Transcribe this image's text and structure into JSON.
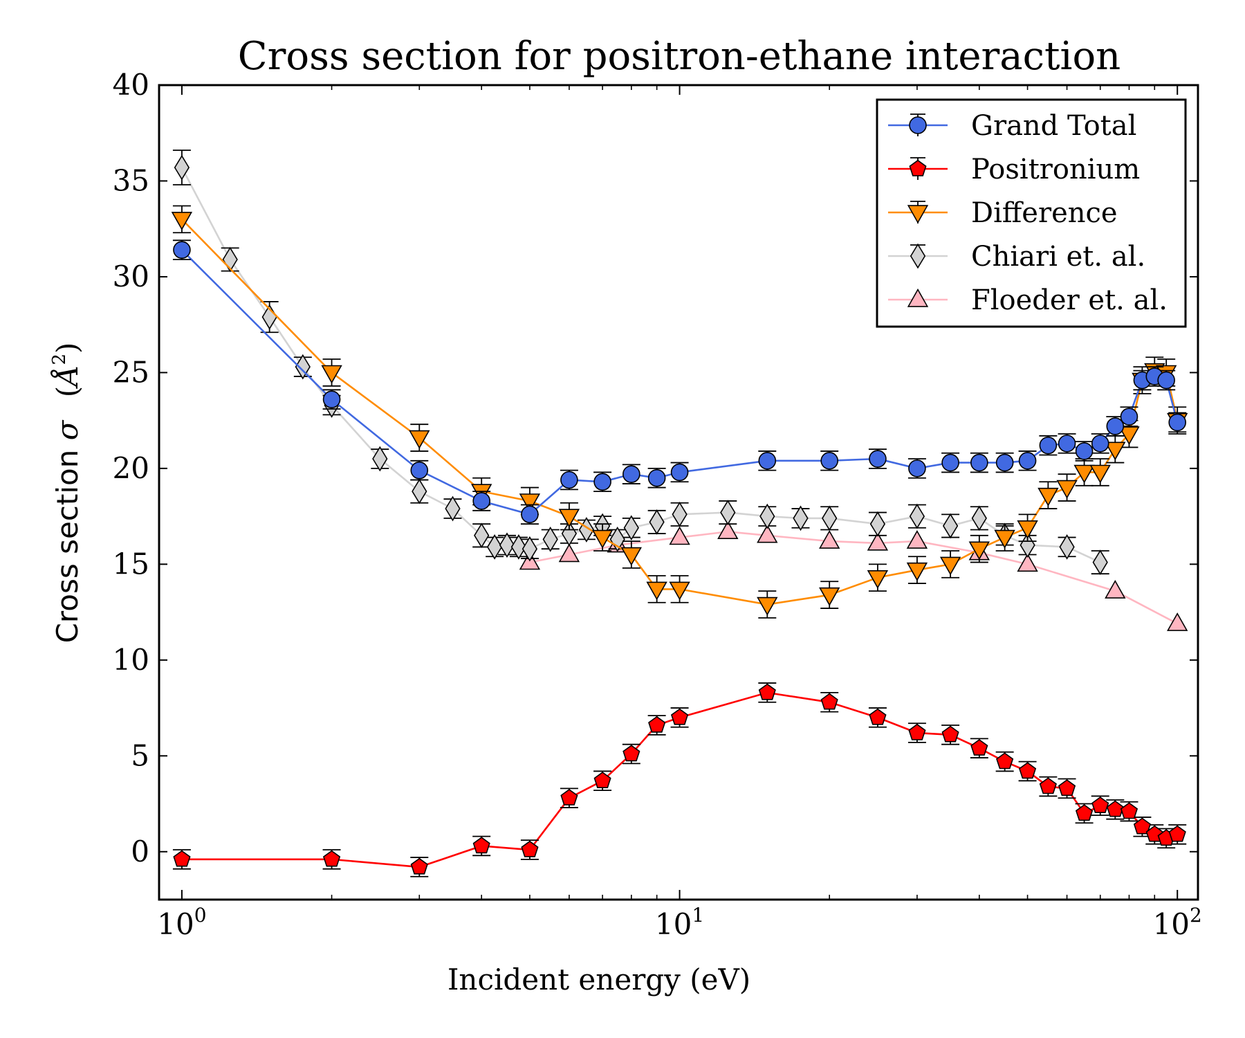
{
  "chart_data": {
    "type": "line",
    "title": "Cross section for positron-ethane interaction",
    "xlabel": "Incident energy (eV)",
    "ylabel_text": "Cross section",
    "ylabel_symbol": "σ",
    "ylabel_unit_base": "Å",
    "ylabel_unit_exp": "2",
    "x_scale": "log",
    "xlim": [
      0.9,
      110
    ],
    "ylim": [
      -2.5,
      40
    ],
    "grid": false,
    "legend_position": "top-right",
    "x_ticks": [
      {
        "value": 1,
        "base": "10",
        "exp": "0"
      },
      {
        "value": 10,
        "base": "10",
        "exp": "1"
      },
      {
        "value": 100,
        "base": "10",
        "exp": "2"
      }
    ],
    "y_ticks": [
      {
        "value": 0,
        "label": "0"
      },
      {
        "value": 5,
        "label": "5"
      },
      {
        "value": 10,
        "label": "10"
      },
      {
        "value": 15,
        "label": "15"
      },
      {
        "value": 20,
        "label": "20"
      },
      {
        "value": 25,
        "label": "25"
      },
      {
        "value": 30,
        "label": "30"
      },
      {
        "value": 35,
        "label": "35"
      },
      {
        "value": 40,
        "label": "40"
      }
    ],
    "series": [
      {
        "name": "Grand Total",
        "marker": "circle",
        "color": "#4169e1",
        "line_color": "#4169e1",
        "x": [
          1,
          2,
          3,
          4,
          5,
          6,
          7,
          8,
          9,
          10,
          15,
          20,
          25,
          30,
          35,
          40,
          45,
          50,
          55,
          60,
          65,
          70,
          75,
          80,
          85,
          90,
          95,
          100
        ],
        "y": [
          31.4,
          23.6,
          19.9,
          18.3,
          17.6,
          19.4,
          19.3,
          19.7,
          19.5,
          19.8,
          20.4,
          20.4,
          20.5,
          20.0,
          20.3,
          20.3,
          20.3,
          20.4,
          21.2,
          21.3,
          20.9,
          21.3,
          22.2,
          22.7,
          24.6,
          24.8,
          24.6,
          22.4
        ],
        "err": [
          0.5,
          0.5,
          0.5,
          0.5,
          0.5,
          0.5,
          0.5,
          0.5,
          0.5,
          0.5,
          0.5,
          0.5,
          0.5,
          0.5,
          0.5,
          0.5,
          0.5,
          0.5,
          0.5,
          0.5,
          0.5,
          0.5,
          0.5,
          0.5,
          0.5,
          0.5,
          0.5,
          0.5
        ]
      },
      {
        "name": "Positronium",
        "marker": "pentagon",
        "color": "#ff0000",
        "line_color": "#ff0000",
        "x": [
          1,
          2,
          3,
          4,
          5,
          6,
          7,
          8,
          9,
          10,
          15,
          20,
          25,
          30,
          35,
          40,
          45,
          50,
          55,
          60,
          65,
          70,
          75,
          80,
          85,
          90,
          95,
          100
        ],
        "y": [
          -0.4,
          -0.4,
          -0.8,
          0.3,
          0.1,
          2.8,
          3.7,
          5.1,
          6.6,
          7.0,
          8.3,
          7.8,
          7.0,
          6.2,
          6.1,
          5.4,
          4.7,
          4.2,
          3.4,
          3.3,
          2.0,
          2.4,
          2.2,
          2.1,
          1.3,
          0.9,
          0.7,
          0.9
        ],
        "err": [
          0.5,
          0.5,
          0.5,
          0.5,
          0.5,
          0.5,
          0.5,
          0.5,
          0.5,
          0.5,
          0.5,
          0.5,
          0.5,
          0.5,
          0.5,
          0.5,
          0.5,
          0.5,
          0.5,
          0.5,
          0.5,
          0.5,
          0.5,
          0.5,
          0.5,
          0.5,
          0.5,
          0.5
        ]
      },
      {
        "name": "Difference",
        "marker": "triangle-down",
        "color": "#ff8c00",
        "line_color": "#ff8c00",
        "x": [
          1,
          2,
          3,
          4,
          5,
          6,
          7,
          8,
          9,
          10,
          15,
          20,
          25,
          30,
          35,
          40,
          45,
          50,
          55,
          60,
          65,
          70,
          75,
          80,
          85,
          90,
          95,
          100
        ],
        "y": [
          33.0,
          25.0,
          21.6,
          18.8,
          18.3,
          17.5,
          16.4,
          15.5,
          13.7,
          13.7,
          12.9,
          13.4,
          14.3,
          14.7,
          15.0,
          15.8,
          16.4,
          16.9,
          18.6,
          19.0,
          19.8,
          19.8,
          21.0,
          21.8,
          24.6,
          25.1,
          25.0,
          22.5
        ],
        "err": [
          0.7,
          0.7,
          0.7,
          0.7,
          0.7,
          0.7,
          0.7,
          0.7,
          0.7,
          0.7,
          0.7,
          0.7,
          0.7,
          0.7,
          0.7,
          0.7,
          0.7,
          0.7,
          0.7,
          0.7,
          0.7,
          0.7,
          0.7,
          0.7,
          0.7,
          0.7,
          0.7,
          0.7
        ]
      },
      {
        "name": "Chiari et. al.",
        "marker": "thin-diamond",
        "color": "#d3d3d3",
        "line_color": "#d3d3d3",
        "x": [
          1.0,
          1.25,
          1.5,
          1.75,
          2.0,
          2.5,
          3.0,
          3.5,
          4.0,
          4.25,
          4.5,
          4.75,
          5.0,
          5.5,
          6.0,
          6.5,
          7.0,
          7.5,
          8.0,
          9.0,
          10.0,
          12.5,
          15.0,
          17.5,
          20.0,
          25.0,
          30.0,
          35.0,
          40.0,
          45.0,
          50.0,
          60.0,
          70.0
        ],
        "y": [
          35.7,
          30.9,
          27.9,
          25.3,
          23.3,
          20.5,
          18.8,
          17.9,
          16.5,
          15.9,
          16.0,
          15.9,
          15.8,
          16.3,
          16.6,
          16.8,
          17.0,
          16.3,
          16.9,
          17.2,
          17.6,
          17.7,
          17.5,
          17.4,
          17.4,
          17.1,
          17.5,
          17.0,
          17.4,
          16.5,
          16.0,
          15.9,
          15.1
        ],
        "err": [
          0.9,
          0.6,
          0.8,
          0.5,
          0.5,
          0.5,
          0.6,
          0.5,
          0.6,
          0.5,
          0.5,
          0.5,
          0.5,
          0.5,
          0.5,
          0.5,
          0.5,
          0.5,
          0.5,
          0.6,
          0.6,
          0.6,
          0.5,
          0.5,
          0.6,
          0.6,
          0.6,
          0.6,
          0.6,
          0.5,
          0.5,
          0.5,
          0.6
        ]
      },
      {
        "name": "Floeder et. al.",
        "marker": "triangle-up",
        "color": "#ffb6c1",
        "line_color": "#ffb6c1",
        "x": [
          5.0,
          6.0,
          7.5,
          10.0,
          12.5,
          15.0,
          20.0,
          25.0,
          30.0,
          40.0,
          50.0,
          75.0,
          100.0
        ],
        "y": [
          15.1,
          15.5,
          16.0,
          16.4,
          16.7,
          16.5,
          16.2,
          16.1,
          16.2,
          15.6,
          15.0,
          13.6,
          11.9
        ],
        "err": []
      }
    ]
  }
}
